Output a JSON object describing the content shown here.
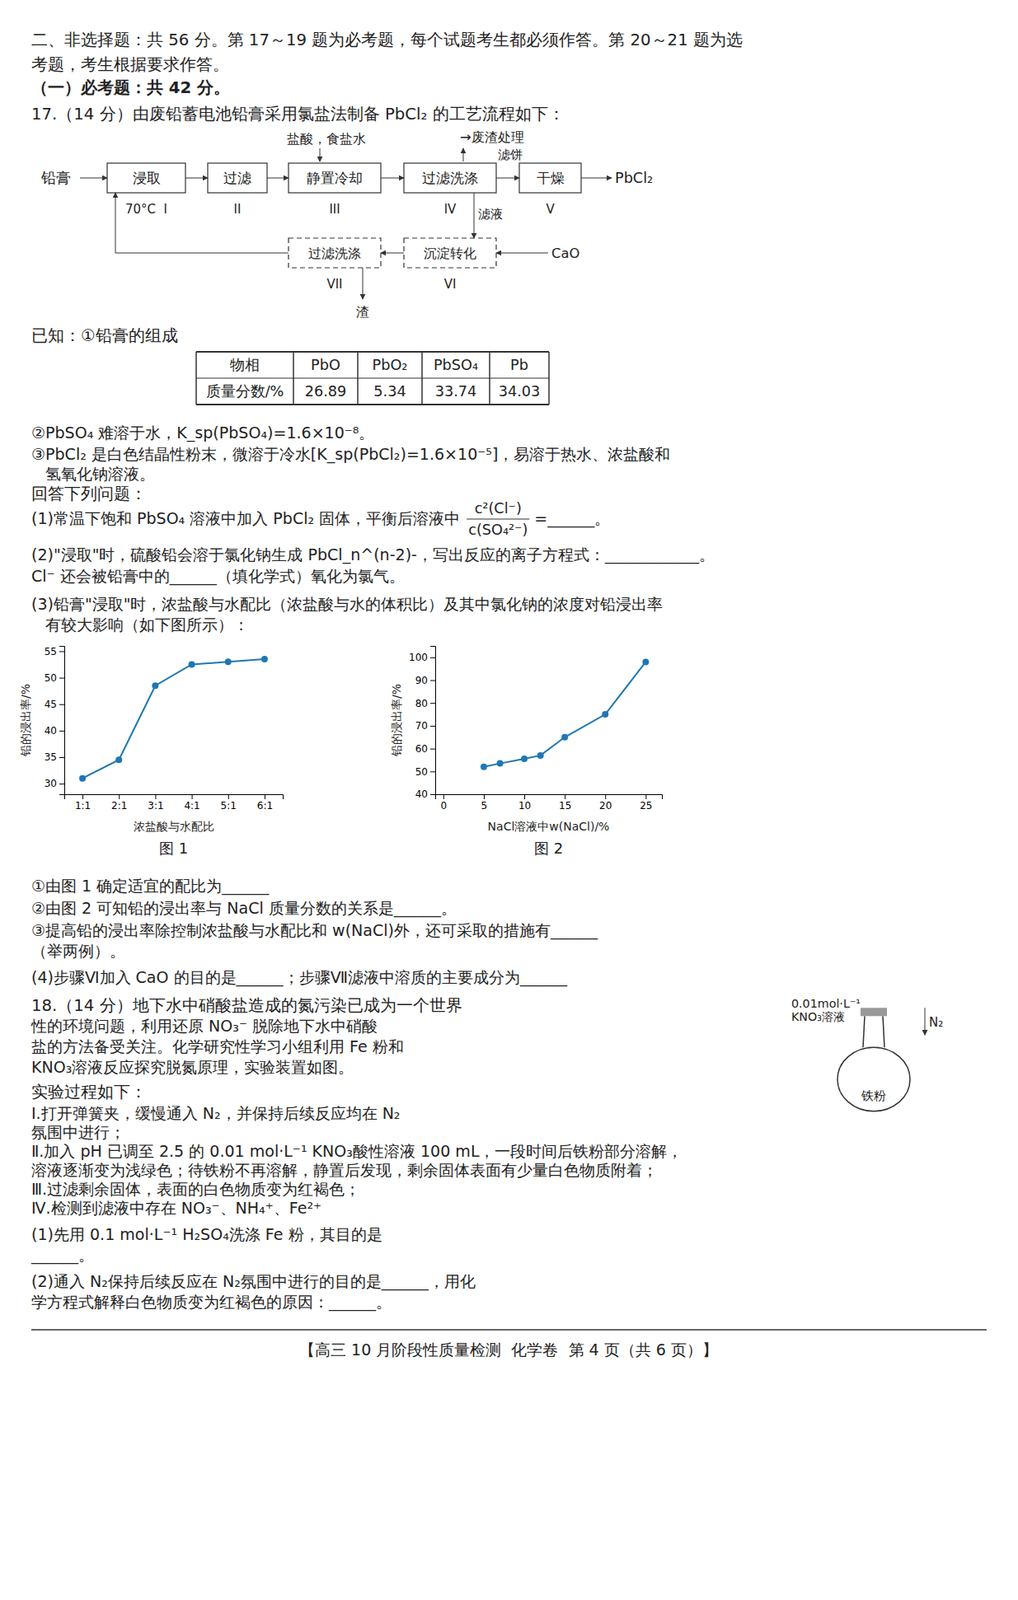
{
  "page": {
    "header": [
      "二、非选择题：共 56 分。第 17～19 题为必考题，每个试题考生都必须作答。第 20～21 题为选",
      "考题，考生根据要求作答。",
      "（一）必考题：共 42 分。"
    ],
    "q17_title": "17.（14 分）由废铅蓄电池铅膏采用氯盐法制备 PbCl₂ 的工艺流程如下：",
    "flow": {
      "inputs_top": "盐酸，食盐水",
      "waste_top": "→废渣处理",
      "start": "铅膏",
      "steps": [
        {
          "label": "浸取",
          "sub": "70°C  I"
        },
        {
          "label": "过滤",
          "sub": "II"
        },
        {
          "label": "静置冷却",
          "sub": "III"
        },
        {
          "label": "过滤洗涤",
          "sub": "IV"
        },
        {
          "label": "干燥",
          "sub": "V"
        }
      ],
      "cake": "滤饼",
      "product": "PbCl₂",
      "loop_steps": [
        {
          "label": "过滤洗涤",
          "sub": "VII"
        },
        {
          "label": "沉淀转化",
          "sub": "VI"
        }
      ],
      "filtrate": "滤液",
      "reagent": "CaO",
      "residue": "渣"
    },
    "known_title": "已知：①铅膏的组成",
    "table": {
      "headers": [
        "物相",
        "PbO",
        "PbO₂",
        "PbSO₄",
        "Pb"
      ],
      "row": [
        "质量分数/%",
        "26.89",
        "5.34",
        "33.74",
        "34.03"
      ]
    },
    "notes": [
      "②PbSO₄ 难溶于水，K_sp(PbSO₄)=1.6×10⁻⁸。",
      "③PbCl₂ 是白色结晶性粉末，微溶于冷水[K_sp(PbCl₂)=1.6×10⁻⁵]，易溶于热水、浓盐酸和",
      "氢氧化钠溶液。",
      "回答下列问题："
    ],
    "q1": {
      "text": "(1)常温下饱和 PbSO₄ 溶液中加入 PbCl₂ 固体，平衡后溶液中",
      "numerator": "c²(Cl⁻)",
      "denominator": "c(SO₄²⁻)",
      "tail": "=______。"
    },
    "q2_q3": [
      "(2)\"浸取\"时，硫酸铅会溶于氯化钠生成 PbCl_n^(n-2)-，写出反应的离子方程式：____________。",
      "Cl⁻ 还会被铅膏中的______（填化学式）氧化为氯气。",
      "(3)铅膏\"浸取\"时，浓盐酸与水配比（浓盐酸与水的体积比）及其中氯化钠的浓度对铅浸出率",
      "有较大影响（如下图所示）："
    ],
    "q3_q4": [
      "①由图 1 确定适宜的配比为______",
      "②由图 2 可知铅的浸出率与 NaCl 质量分数的关系是______。",
      "③提高铅的浸出率除控制浓盐酸与水配比和 w(NaCl)外，还可采取的措施有______",
      "（举两例）。",
      "(4)步骤Ⅵ加入 CaO 的目的是______；步骤Ⅶ滤液中溶质的主要成分为______"
    ],
    "q18": [
      "18.（14 分）地下水中硝酸盐造成的氮污染已成为一个世界",
      "性的环境问题，利用还原 NO₃⁻ 脱除地下水中硝酸",
      "盐的方法备受关注。化学研究性学习小组利用 Fe 粉和",
      "KNO₃溶液反应探究脱氮原理，实验装置如图。",
      "实验过程如下：",
      "Ⅰ.打开弹簧夹，缓慢通入 N₂，并保持后续反应均在 N₂",
      "氛围中进行；",
      "Ⅱ.加入 pH 已调至 2.5 的 0.01 mol·L⁻¹ KNO₃酸性溶液 100 mL，一段时间后铁粉部分溶解，",
      "溶液逐渐变为浅绿色；待铁粉不再溶解，静置后发现，剩余固体表面有少量白色物质附着；",
      "Ⅲ.过滤剩余固体，表面的白色物质变为红褐色；",
      "Ⅳ.检测到滤液中存在 NO₃⁻、NH₄⁺、Fe²⁺",
      "(1)先用 0.1 mol·L⁻¹ H₂SO₄洗涤 Fe 粉，其目的是",
      "______。",
      "(2)通入 N₂保持后续反应在 N₂氛围中进行的目的是______，用化",
      "学方程式解释白色物质变为红褐色的原因：______。"
    ],
    "apparatus": {
      "solution": [
        "0.01mol·L⁻¹",
        "KNO₃溶液"
      ],
      "gas": "N₂",
      "solid": "铁粉"
    },
    "footer": "【高三 10 月阶段性质量检测  化学卷  第 4 页（共 6 页）】"
  },
  "chart_data": [
    {
      "type": "line",
      "title": "图 1",
      "x_label": "浓盐酸与水配比",
      "y_label": "铅的浸出率/%",
      "x": [
        1,
        2,
        3,
        4,
        5,
        6
      ],
      "values": [
        31.0,
        34.5,
        48.5,
        52.5,
        53.0,
        53.5
      ],
      "xlim": [
        0.5,
        6.5
      ],
      "xticks": [
        {
          "value": 1,
          "label": "1:1"
        },
        {
          "value": 2,
          "label": "2:1"
        },
        {
          "value": 3,
          "label": "3:1"
        },
        {
          "value": 4,
          "label": "4:1"
        },
        {
          "value": 5,
          "label": "5:1"
        },
        {
          "value": 6,
          "label": "6:1"
        }
      ],
      "ylim": [
        28,
        56
      ],
      "yticks": [
        30,
        35,
        40,
        45,
        50,
        55
      ],
      "marker": "circle",
      "grid": false
    },
    {
      "type": "line",
      "title": "图 2",
      "x_label": "NaCl溶液中w(NaCl)/%",
      "y_label": "铅的浸出率/%",
      "x": [
        5,
        7,
        10,
        12,
        15,
        20,
        25
      ],
      "values": [
        52.0,
        53.5,
        55.5,
        57.0,
        65.0,
        75.0,
        98.0
      ],
      "xlim": [
        -1,
        27
      ],
      "xticks": [
        0,
        5,
        10,
        15,
        20,
        25
      ],
      "ylim": [
        40,
        105
      ],
      "yticks": [
        40,
        50,
        60,
        70,
        80,
        90,
        100
      ],
      "marker": "circle",
      "grid": false
    }
  ]
}
